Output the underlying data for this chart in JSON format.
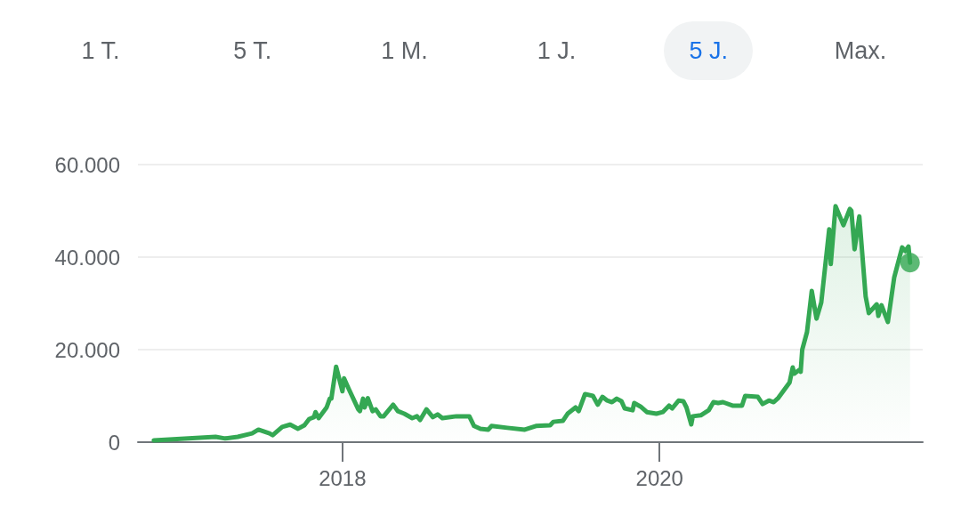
{
  "chart_data": {
    "type": "area",
    "annotations": [
      "1 T.",
      "5 T.",
      "1 M.",
      "1 J.",
      "5 J.",
      "Max."
    ],
    "xlim": [
      2016.71,
      2021.66
    ],
    "xticks": [
      2018,
      2020
    ],
    "ylim": [
      0,
      60000
    ],
    "yticks": [
      {
        "value": 0,
        "label": "0"
      },
      {
        "value": 20000,
        "label": "20.000"
      },
      {
        "value": 40000,
        "label": "40.000"
      },
      {
        "value": 60000,
        "label": "60.000"
      }
    ],
    "grid": "y",
    "marker": "none",
    "line_style": "solid",
    "series": [
      {
        "color": "#34a853",
        "x": [
          2016.81,
          2017.2,
          2017.26,
          2017.34,
          2017.43,
          2017.47,
          2017.54,
          2017.56,
          2017.62,
          2017.67,
          2017.72,
          2017.76,
          2017.79,
          2017.82,
          2017.83,
          2017.85,
          2017.9,
          2017.92,
          2017.93,
          2017.96,
          2018.0,
          2018.01,
          2018.04,
          2018.1,
          2018.11,
          2018.13,
          2018.14,
          2018.16,
          2018.19,
          2018.21,
          2018.24,
          2018.26,
          2018.32,
          2018.35,
          2018.39,
          2018.44,
          2018.47,
          2018.49,
          2018.53,
          2018.57,
          2018.6,
          2018.63,
          2018.72,
          2018.8,
          2018.83,
          2018.87,
          2018.92,
          2018.94,
          2019.04,
          2019.15,
          2019.22,
          2019.31,
          2019.33,
          2019.39,
          2019.42,
          2019.47,
          2019.49,
          2019.53,
          2019.58,
          2019.61,
          2019.64,
          2019.67,
          2019.7,
          2019.73,
          2019.76,
          2019.78,
          2019.83,
          2019.84,
          2019.88,
          2019.92,
          2019.98,
          2020.02,
          2020.06,
          2020.08,
          2020.12,
          2020.15,
          2020.17,
          2020.2,
          2020.21,
          2020.26,
          2020.31,
          2020.34,
          2020.37,
          2020.4,
          2020.46,
          2020.52,
          2020.54,
          2020.62,
          2020.65,
          2020.69,
          2020.72,
          2020.75,
          2020.79,
          2020.82,
          2020.84,
          2020.85,
          2020.88,
          2020.89,
          2020.9,
          2020.93,
          2020.96,
          2020.99,
          2021.02,
          2021.07,
          2021.08,
          2021.11,
          2021.16,
          2021.2,
          2021.21,
          2021.23,
          2021.26,
          2021.3,
          2021.32,
          2021.37,
          2021.38,
          2021.4,
          2021.44,
          2021.48,
          2021.53,
          2021.55,
          2021.57,
          2021.58
        ],
        "values": [
          400,
          1150,
          800,
          1150,
          1900,
          2700,
          1900,
          1500,
          3300,
          3800,
          2900,
          3650,
          5000,
          5400,
          6500,
          5200,
          7500,
          9400,
          9400,
          16300,
          11000,
          13800,
          11500,
          7100,
          6700,
          9400,
          7500,
          9500,
          6700,
          7100,
          5600,
          5600,
          8100,
          6700,
          6150,
          5200,
          5600,
          4800,
          7100,
          5400,
          6000,
          5200,
          5600,
          5600,
          3500,
          2900,
          2700,
          3500,
          3100,
          2700,
          3500,
          3650,
          4400,
          4600,
          6150,
          7500,
          6700,
          10400,
          10000,
          8100,
          9800,
          9000,
          8650,
          9400,
          8850,
          7300,
          6900,
          8450,
          7700,
          6500,
          6150,
          6500,
          7900,
          7300,
          9000,
          8850,
          7500,
          3850,
          5600,
          5800,
          6900,
          8650,
          8450,
          8650,
          7900,
          7900,
          10000,
          9800,
          8250,
          9000,
          8650,
          9600,
          11500,
          12900,
          16150,
          14800,
          15600,
          15200,
          20000,
          23800,
          32700,
          26700,
          30200,
          46000,
          38500,
          51000,
          46900,
          50400,
          50000,
          41700,
          48800,
          31500,
          27900,
          29800,
          27300,
          29600,
          26000,
          35600,
          42100,
          41300,
          42300,
          38800
        ]
      },
      {
        "type": "scatter",
        "marker": "circle",
        "color": "#34a853",
        "x": [
          2021.58
        ],
        "values": [
          38800
        ]
      }
    ]
  }
}
